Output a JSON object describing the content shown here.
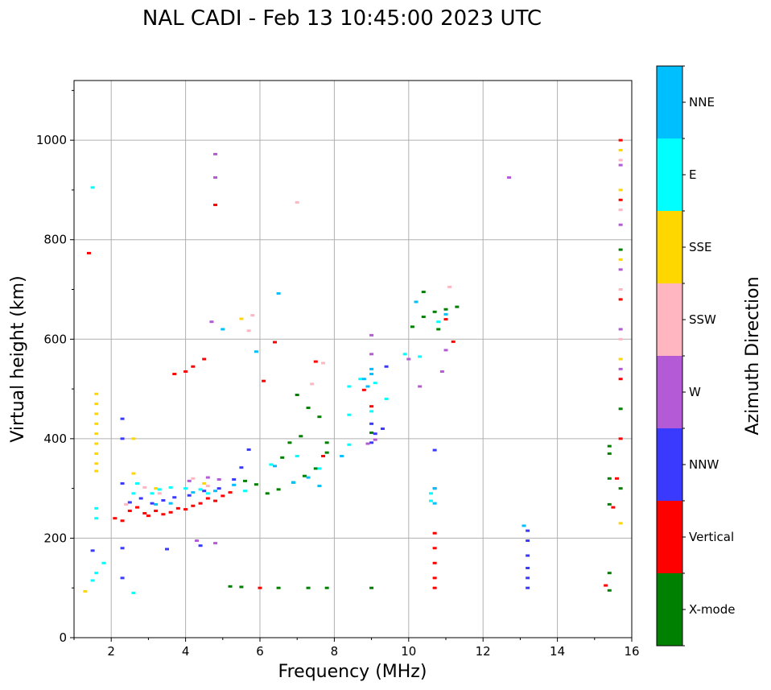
{
  "chart_data": {
    "type": "scatter",
    "title": "NAL CADI - Feb 13 10:45:00 2023 UTC",
    "xlabel": "Frequency (MHz)",
    "ylabel": "Virtual height (km)",
    "xlim": [
      1,
      16
    ],
    "ylim": [
      0,
      1120
    ],
    "x_ticks": [
      2,
      4,
      6,
      8,
      10,
      12,
      14,
      16
    ],
    "y_ticks": [
      0,
      200,
      400,
      600,
      800,
      1000
    ],
    "grid": true,
    "colorbar": {
      "label": "Azimuth Direction",
      "categories": [
        "X-mode",
        "Vertical",
        "NNW",
        "W",
        "SSW",
        "SSE",
        "E",
        "NNE"
      ],
      "colors": [
        "#008000",
        "#ff0000",
        "#3a3aff",
        "#b45ad6",
        "#ffb6c1",
        "#ffd700",
        "#00ffff",
        "#00bfff"
      ]
    },
    "series": [
      {
        "name": "Vertical",
        "points": [
          [
            2.1,
            240
          ],
          [
            2.3,
            235
          ],
          [
            2.5,
            255
          ],
          [
            2.7,
            262
          ],
          [
            2.9,
            250
          ],
          [
            3.0,
            245
          ],
          [
            3.2,
            255
          ],
          [
            3.4,
            248
          ],
          [
            3.6,
            252
          ],
          [
            3.8,
            260
          ],
          [
            4.0,
            258
          ],
          [
            4.2,
            265
          ],
          [
            4.4,
            270
          ],
          [
            4.6,
            280
          ],
          [
            4.8,
            275
          ],
          [
            5.0,
            285
          ],
          [
            5.2,
            292
          ],
          [
            6.0,
            100
          ],
          [
            6.4,
            594
          ],
          [
            4.0,
            535
          ],
          [
            4.2,
            545
          ],
          [
            4.5,
            560
          ],
          [
            3.7,
            530
          ],
          [
            4.8,
            870
          ],
          [
            1.4,
            773
          ],
          [
            10.7,
            300
          ],
          [
            10.7,
            210
          ],
          [
            10.7,
            180
          ],
          [
            10.7,
            150
          ],
          [
            10.7,
            120
          ],
          [
            10.7,
            100
          ],
          [
            11.0,
            640
          ],
          [
            11.2,
            595
          ],
          [
            15.3,
            105
          ],
          [
            15.5,
            262
          ],
          [
            15.6,
            320
          ],
          [
            15.7,
            400
          ],
          [
            15.7,
            520
          ],
          [
            15.7,
            680
          ],
          [
            15.7,
            880
          ],
          [
            15.7,
            1000
          ],
          [
            9.0,
            465
          ],
          [
            8.8,
            498
          ],
          [
            6.1,
            516
          ],
          [
            7.5,
            555
          ],
          [
            7.7,
            365
          ]
        ]
      },
      {
        "name": "X-mode",
        "points": [
          [
            5.6,
            315
          ],
          [
            5.9,
            308
          ],
          [
            6.2,
            290
          ],
          [
            6.5,
            298
          ],
          [
            6.9,
            312
          ],
          [
            7.2,
            325
          ],
          [
            7.5,
            340
          ],
          [
            7.8,
            372
          ],
          [
            6.6,
            362
          ],
          [
            6.8,
            392
          ],
          [
            7.1,
            405
          ],
          [
            7.3,
            462
          ],
          [
            7.6,
            444
          ],
          [
            5.2,
            103
          ],
          [
            5.5,
            102
          ],
          [
            6.5,
            100
          ],
          [
            7.3,
            100
          ],
          [
            7.8,
            100
          ],
          [
            9.0,
            100
          ],
          [
            10.1,
            625
          ],
          [
            10.4,
            645
          ],
          [
            10.7,
            655
          ],
          [
            11.0,
            660
          ],
          [
            11.3,
            665
          ],
          [
            10.4,
            695
          ],
          [
            10.8,
            620
          ],
          [
            15.4,
            385
          ],
          [
            15.4,
            370
          ],
          [
            15.4,
            320
          ],
          [
            15.4,
            268
          ],
          [
            15.4,
            130
          ],
          [
            15.4,
            95
          ],
          [
            15.7,
            300
          ],
          [
            15.7,
            460
          ],
          [
            15.7,
            780
          ],
          [
            7.0,
            488
          ],
          [
            7.8,
            392
          ],
          [
            9.0,
            412
          ]
        ]
      },
      {
        "name": "NNW",
        "points": [
          [
            2.3,
            440
          ],
          [
            2.3,
            400
          ],
          [
            2.3,
            310
          ],
          [
            2.3,
            180
          ],
          [
            2.3,
            120
          ],
          [
            2.5,
            272
          ],
          [
            2.8,
            280
          ],
          [
            3.1,
            270
          ],
          [
            3.4,
            276
          ],
          [
            3.7,
            282
          ],
          [
            4.1,
            286
          ],
          [
            4.5,
            295
          ],
          [
            4.9,
            300
          ],
          [
            5.3,
            318
          ],
          [
            5.5,
            342
          ],
          [
            5.7,
            378
          ],
          [
            3.5,
            178
          ],
          [
            4.4,
            185
          ],
          [
            9.0,
            392
          ],
          [
            9.3,
            420
          ],
          [
            9.1,
            410
          ],
          [
            9.0,
            430
          ],
          [
            9.4,
            545
          ],
          [
            10.7,
            377
          ],
          [
            13.2,
            215
          ],
          [
            13.2,
            195
          ],
          [
            13.2,
            165
          ],
          [
            13.2,
            140
          ],
          [
            13.2,
            120
          ],
          [
            13.2,
            100
          ],
          [
            1.5,
            175
          ]
        ]
      },
      {
        "name": "W",
        "points": [
          [
            4.3,
            195
          ],
          [
            4.8,
            190
          ],
          [
            4.6,
            322
          ],
          [
            4.1,
            315
          ],
          [
            4.9,
            318
          ],
          [
            8.9,
            390
          ],
          [
            9.1,
            398
          ],
          [
            9.0,
            570
          ],
          [
            9.0,
            608
          ],
          [
            10.0,
            560
          ],
          [
            10.3,
            505
          ],
          [
            12.7,
            925
          ],
          [
            4.8,
            972
          ],
          [
            4.8,
            925
          ],
          [
            4.7,
            635
          ],
          [
            10.9,
            535
          ],
          [
            15.7,
            950
          ],
          [
            15.7,
            830
          ],
          [
            15.7,
            740
          ],
          [
            15.7,
            620
          ],
          [
            15.7,
            540
          ],
          [
            11.0,
            578
          ]
        ]
      },
      {
        "name": "SSW",
        "points": [
          [
            4.6,
            305
          ],
          [
            4.2,
            320
          ],
          [
            3.3,
            290
          ],
          [
            2.9,
            302
          ],
          [
            7.4,
            510
          ],
          [
            7.7,
            552
          ],
          [
            5.7,
            617
          ],
          [
            11.1,
            705
          ],
          [
            15.7,
            600
          ],
          [
            15.7,
            700
          ],
          [
            15.7,
            860
          ],
          [
            15.7,
            960
          ],
          [
            2.4,
            268
          ],
          [
            5.8,
            648
          ],
          [
            7.0,
            875
          ]
        ]
      },
      {
        "name": "SSE",
        "points": [
          [
            1.6,
            490
          ],
          [
            1.6,
            470
          ],
          [
            1.6,
            450
          ],
          [
            1.6,
            430
          ],
          [
            1.6,
            410
          ],
          [
            1.6,
            390
          ],
          [
            1.6,
            370
          ],
          [
            1.6,
            350
          ],
          [
            1.6,
            335
          ],
          [
            2.6,
            400
          ],
          [
            2.6,
            330
          ],
          [
            1.3,
            93
          ],
          [
            15.7,
            230
          ],
          [
            15.7,
            560
          ],
          [
            15.7,
            760
          ],
          [
            15.7,
            900
          ],
          [
            15.7,
            980
          ],
          [
            3.2,
            300
          ],
          [
            4.5,
            310
          ],
          [
            5.5,
            641
          ]
        ]
      },
      {
        "name": "E",
        "points": [
          [
            1.6,
            260
          ],
          [
            1.6,
            240
          ],
          [
            1.5,
            115
          ],
          [
            1.6,
            130
          ],
          [
            1.8,
            150
          ],
          [
            2.6,
            90
          ],
          [
            2.6,
            290
          ],
          [
            2.7,
            310
          ],
          [
            3.1,
            290
          ],
          [
            3.3,
            298
          ],
          [
            3.6,
            302
          ],
          [
            4.0,
            300
          ],
          [
            4.4,
            298
          ],
          [
            5.6,
            295
          ],
          [
            6.3,
            348
          ],
          [
            7.0,
            365
          ],
          [
            7.6,
            340
          ],
          [
            8.4,
            505
          ],
          [
            8.7,
            520
          ],
          [
            9.1,
            512
          ],
          [
            8.4,
            448
          ],
          [
            8.4,
            388
          ],
          [
            9.0,
            455
          ],
          [
            9.4,
            480
          ],
          [
            9.9,
            570
          ],
          [
            10.8,
            635
          ],
          [
            10.3,
            565
          ],
          [
            10.6,
            290
          ],
          [
            10.6,
            275
          ],
          [
            1.5,
            905
          ],
          [
            4.6,
            290
          ]
        ]
      },
      {
        "name": "NNE",
        "points": [
          [
            3.2,
            268
          ],
          [
            3.6,
            270
          ],
          [
            4.2,
            292
          ],
          [
            4.8,
            295
          ],
          [
            5.3,
            307
          ],
          [
            6.5,
            692
          ],
          [
            6.4,
            345
          ],
          [
            7.3,
            322
          ],
          [
            7.6,
            305
          ],
          [
            8.2,
            365
          ],
          [
            8.9,
            505
          ],
          [
            9.0,
            530
          ],
          [
            9.0,
            540
          ],
          [
            10.2,
            675
          ],
          [
            10.7,
            300
          ],
          [
            10.7,
            270
          ],
          [
            11.0,
            650
          ],
          [
            6.9,
            312
          ],
          [
            5.0,
            620
          ],
          [
            5.9,
            575
          ],
          [
            8.8,
            520
          ],
          [
            13.1,
            225
          ]
        ]
      }
    ]
  }
}
